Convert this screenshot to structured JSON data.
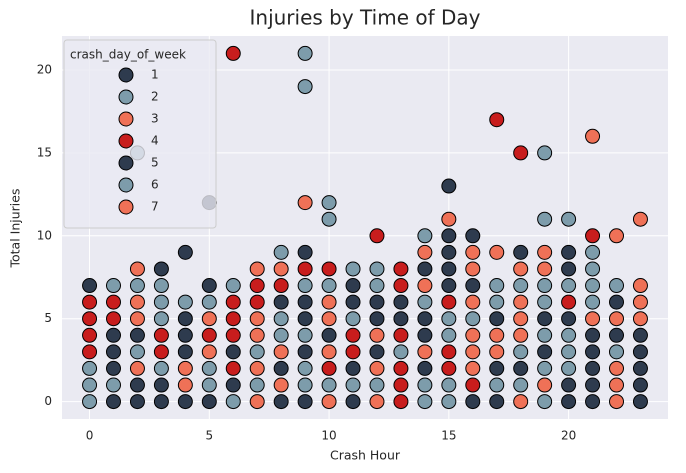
{
  "chart_data": {
    "type": "scatter",
    "title": "Injuries by Time of Day",
    "x_label": "Crash Hour",
    "y_label": "Total Injuries",
    "xlim": [
      -1.15,
      24.15
    ],
    "ylim": [
      -1.05,
      22.05
    ],
    "xticks": [
      0,
      5,
      10,
      15,
      20
    ],
    "yticks": [
      0,
      5,
      10,
      15,
      20
    ],
    "grid": true,
    "legend_title": "crash_day_of_week",
    "legend_position": "upper-left",
    "series": [
      {
        "name": "1",
        "color": "#2e3b4e",
        "x": [
          0,
          2,
          2,
          2,
          4,
          4,
          4,
          4,
          4,
          6,
          6,
          8,
          8,
          8,
          10,
          12,
          12,
          12,
          14,
          14,
          14,
          14,
          16,
          16,
          16,
          18,
          18,
          20,
          20,
          20,
          20,
          20,
          22,
          22
        ],
        "y": [
          7,
          0,
          1,
          4,
          0,
          3,
          4,
          5,
          9,
          1,
          3,
          0,
          2,
          6,
          4,
          3,
          5,
          6,
          2,
          4,
          5,
          8,
          0,
          7,
          10,
          2,
          9,
          0,
          1,
          5,
          8,
          9,
          4,
          6
        ]
      },
      {
        "name": "2",
        "color": "#7d9cab",
        "x": [
          0,
          0,
          0,
          2,
          2,
          2,
          4,
          6,
          6,
          8,
          8,
          8,
          10,
          10,
          10,
          10,
          12,
          12,
          12,
          14,
          14,
          14,
          14,
          16,
          18,
          18,
          18,
          20,
          20,
          20,
          20,
          20,
          22,
          22
        ],
        "y": [
          0,
          1,
          2,
          3,
          7,
          15,
          6,
          0,
          7,
          4,
          5,
          9,
          1,
          7,
          11,
          12,
          1,
          7,
          8,
          0,
          1,
          6,
          10,
          5,
          1,
          3,
          7,
          2,
          3,
          4,
          7,
          11,
          3,
          7
        ]
      },
      {
        "name": "3",
        "color": "#ef7157",
        "x": [
          2,
          2,
          2,
          2,
          4,
          4,
          8,
          8,
          8,
          10,
          10,
          10,
          10,
          12,
          12,
          12,
          14,
          14,
          14,
          16,
          16,
          16,
          16,
          16,
          16,
          18,
          18,
          18,
          18,
          18,
          22,
          22,
          22,
          22,
          22
        ],
        "y": [
          2,
          5,
          6,
          8,
          1,
          2,
          1,
          3,
          8,
          0,
          3,
          5,
          6,
          0,
          2,
          4,
          3,
          7,
          9,
          2,
          3,
          4,
          6,
          8,
          9,
          0,
          4,
          5,
          6,
          8,
          0,
          1,
          2,
          5,
          10
        ]
      },
      {
        "name": "4",
        "color": "#c81d1d",
        "x": [
          0,
          0,
          0,
          0,
          1,
          1,
          3,
          3,
          5,
          6,
          6,
          6,
          6,
          6,
          7,
          7,
          8,
          9,
          10,
          10,
          11,
          11,
          12,
          13,
          13,
          13,
          13,
          13,
          13,
          15,
          15,
          15,
          16,
          17,
          18,
          20,
          21
        ],
        "y": [
          3,
          4,
          5,
          6,
          5,
          6,
          3,
          4,
          4,
          2,
          4,
          5,
          6,
          21,
          6,
          7,
          7,
          8,
          2,
          8,
          3,
          4,
          10,
          0,
          1,
          2,
          4,
          7,
          8,
          2,
          3,
          6,
          1,
          17,
          15,
          6,
          10
        ]
      },
      {
        "name": "5",
        "color": "#2e3b4e",
        "x": [
          1,
          1,
          1,
          1,
          3,
          3,
          3,
          5,
          5,
          5,
          9,
          9,
          9,
          9,
          9,
          11,
          11,
          11,
          11,
          13,
          13,
          15,
          15,
          15,
          15,
          15,
          17,
          17,
          17,
          19,
          19,
          21,
          21,
          21,
          21,
          21,
          23,
          23,
          23,
          23,
          23
        ],
        "y": [
          0,
          2,
          3,
          4,
          0,
          1,
          8,
          0,
          7,
          12,
          0,
          3,
          5,
          6,
          9,
          0,
          2,
          6,
          7,
          5,
          6,
          7,
          8,
          9,
          10,
          13,
          0,
          2,
          5,
          3,
          5,
          0,
          1,
          2,
          3,
          4,
          0,
          1,
          2,
          3,
          4
        ]
      },
      {
        "name": "6",
        "color": "#7d9cab",
        "x": [
          1,
          1,
          3,
          3,
          3,
          3,
          5,
          5,
          5,
          7,
          7,
          9,
          9,
          9,
          9,
          9,
          9,
          11,
          11,
          11,
          13,
          15,
          15,
          15,
          15,
          17,
          17,
          17,
          19,
          19,
          19,
          19,
          19,
          19,
          19,
          21,
          21,
          21,
          21
        ],
        "y": [
          1,
          7,
          2,
          5,
          6,
          7,
          1,
          2,
          6,
          1,
          3,
          1,
          2,
          4,
          7,
          19,
          21,
          1,
          5,
          8,
          3,
          0,
          1,
          4,
          5,
          1,
          6,
          7,
          0,
          2,
          4,
          6,
          7,
          11,
          15,
          6,
          7,
          8,
          9
        ]
      },
      {
        "name": "7",
        "color": "#ef7157",
        "x": [
          5,
          5,
          7,
          7,
          7,
          7,
          7,
          9,
          15,
          17,
          17,
          17,
          19,
          19,
          19,
          21,
          21,
          23,
          23,
          23,
          23
        ],
        "y": [
          3,
          5,
          0,
          2,
          4,
          5,
          8,
          12,
          11,
          3,
          4,
          9,
          1,
          8,
          9,
          5,
          16,
          5,
          6,
          7,
          11
        ]
      }
    ]
  }
}
